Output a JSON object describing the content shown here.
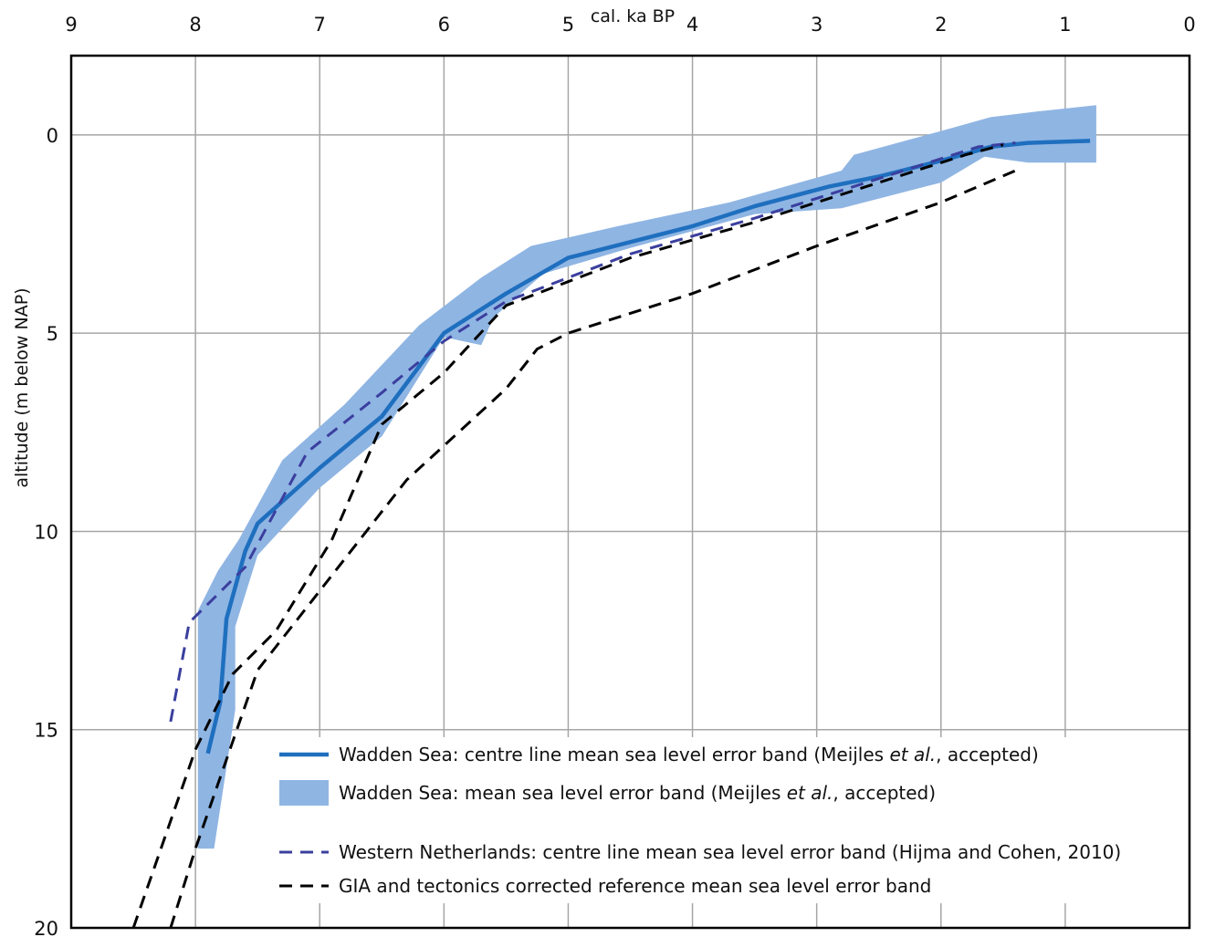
{
  "chart_data": {
    "type": "line",
    "xlabel": "cal. ka BP",
    "ylabel": "altitude (m below NAP)",
    "xlim": [
      9,
      0
    ],
    "ylim": [
      20,
      -2
    ],
    "x_axis_position": "top",
    "x_ticks": [
      9,
      8,
      7,
      6,
      5,
      4,
      3,
      2,
      1,
      0
    ],
    "y_ticks": [
      0,
      5,
      10,
      15,
      20
    ],
    "grid": true,
    "legend_position": "bottom-right",
    "colors": {
      "wadden_line": "#1f6fbf",
      "wadden_band": "#8fb5e3",
      "western_nl": "#3b3f9e",
      "gia": "#000000",
      "grid": "#a6a6a6",
      "frame": "#000000"
    },
    "band": {
      "upper": [
        [
          7.98,
          18.0
        ],
        [
          7.98,
          12.0
        ],
        [
          7.82,
          11.0
        ],
        [
          7.65,
          10.2
        ],
        [
          7.3,
          8.2
        ],
        [
          6.8,
          6.8
        ],
        [
          6.2,
          4.8
        ],
        [
          5.7,
          3.6
        ],
        [
          5.3,
          2.8
        ],
        [
          4.6,
          2.3
        ],
        [
          3.7,
          1.7
        ],
        [
          2.8,
          0.9
        ],
        [
          2.7,
          0.5
        ],
        [
          2.0,
          -0.1
        ],
        [
          1.6,
          -0.45
        ],
        [
          1.2,
          -0.6
        ],
        [
          0.75,
          -0.75
        ]
      ],
      "lower": [
        [
          0.75,
          0.7
        ],
        [
          1.3,
          0.7
        ],
        [
          1.65,
          0.55
        ],
        [
          2.0,
          1.2
        ],
        [
          2.8,
          1.85
        ],
        [
          3.5,
          2.0
        ],
        [
          4.5,
          2.85
        ],
        [
          5.2,
          3.5
        ],
        [
          5.6,
          4.6
        ],
        [
          5.7,
          5.3
        ],
        [
          6.0,
          5.1
        ],
        [
          6.5,
          7.6
        ],
        [
          7.0,
          8.9
        ],
        [
          7.5,
          10.6
        ],
        [
          7.68,
          12.4
        ],
        [
          7.68,
          14.5
        ],
        [
          7.85,
          18.0
        ]
      ]
    },
    "series": [
      {
        "name": "Wadden Sea: centre line mean sea level error band (Meijles et al., accepted)",
        "style": "solid",
        "points": [
          [
            7.9,
            15.6
          ],
          [
            7.8,
            14.3
          ],
          [
            7.75,
            12.2
          ],
          [
            7.6,
            10.5
          ],
          [
            7.5,
            9.8
          ],
          [
            7.0,
            8.4
          ],
          [
            6.5,
            7.1
          ],
          [
            6.0,
            5.0
          ],
          [
            5.5,
            4.0
          ],
          [
            5.0,
            3.1
          ],
          [
            4.0,
            2.3
          ],
          [
            3.5,
            1.8
          ],
          [
            2.9,
            1.3
          ],
          [
            2.5,
            1.05
          ],
          [
            2.0,
            0.65
          ],
          [
            1.6,
            0.3
          ],
          [
            1.3,
            0.2
          ],
          [
            0.8,
            0.15
          ]
        ]
      },
      {
        "name": "Western Netherlands: centre line mean sea level error band (Hijma and Cohen, 2010)",
        "style": "dashed",
        "points": [
          [
            8.2,
            14.8
          ],
          [
            8.05,
            12.3
          ],
          [
            7.6,
            10.9
          ],
          [
            7.1,
            8.0
          ],
          [
            6.5,
            6.5
          ],
          [
            6.0,
            5.2
          ],
          [
            5.5,
            4.2
          ],
          [
            4.5,
            3.0
          ],
          [
            3.5,
            2.1
          ],
          [
            2.5,
            1.1
          ],
          [
            1.7,
            0.3
          ],
          [
            1.4,
            0.2
          ]
        ]
      },
      {
        "name": "GIA and tectonics corrected reference mean sea level error band",
        "style": "dashed",
        "points": [
          [
            8.5,
            20.0
          ],
          [
            8.0,
            15.5
          ],
          [
            7.7,
            13.6
          ],
          [
            7.35,
            12.5
          ],
          [
            6.9,
            10.2
          ],
          [
            6.5,
            7.3
          ],
          [
            6.0,
            6.0
          ],
          [
            5.5,
            4.3
          ],
          [
            5.0,
            3.7
          ],
          [
            4.5,
            3.1
          ],
          [
            3.5,
            2.2
          ],
          [
            2.5,
            1.2
          ],
          [
            1.8,
            0.5
          ],
          [
            1.5,
            0.25
          ]
        ]
      },
      {
        "name": "GIA and tectonics corrected reference mean sea level error band",
        "style": "dashed",
        "points": [
          [
            8.2,
            20.0
          ],
          [
            8.0,
            18.0
          ],
          [
            7.5,
            13.5
          ],
          [
            6.3,
            8.7
          ],
          [
            5.5,
            6.4
          ],
          [
            5.25,
            5.4
          ],
          [
            5.0,
            5.0
          ],
          [
            4.0,
            4.0
          ],
          [
            3.0,
            2.8
          ],
          [
            2.0,
            1.7
          ],
          [
            1.4,
            0.9
          ]
        ]
      }
    ],
    "legend": [
      {
        "label": "Wadden Sea: centre line mean sea level error band (Meijles ",
        "italic": "et al.",
        "tail": ", accepted)",
        "symbol": "solid-line"
      },
      {
        "label": "Wadden Sea: mean sea level error band (Meijles ",
        "italic": "et al.",
        "tail": ", accepted)",
        "symbol": "band"
      },
      {
        "label": "Western Netherlands: centre line mean sea level error band (Hijma and Cohen, 2010)",
        "italic": "",
        "tail": "",
        "symbol": "dashed-purple"
      },
      {
        "label": "GIA and tectonics corrected reference mean sea level error band",
        "italic": "",
        "tail": "",
        "symbol": "dashed-black"
      }
    ]
  }
}
